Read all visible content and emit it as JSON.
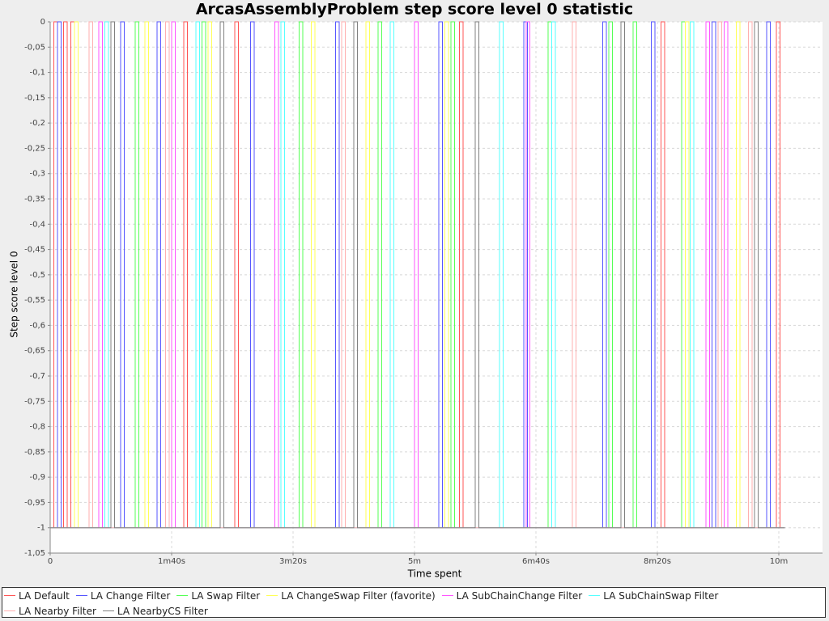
{
  "chart_data": {
    "type": "line",
    "title": "ArcasAssemblyProblem step score level 0 statistic",
    "x_label": "Time spent",
    "y_label": "Step score level 0",
    "xlim": [
      0,
      636
    ],
    "ylim": [
      -1.05,
      0
    ],
    "xticks": [
      0,
      {
        "value": 100,
        "label": "1m40s"
      },
      {
        "value": 200,
        "label": "3m20s"
      },
      {
        "value": 300,
        "label": "5m"
      },
      {
        "value": 400,
        "label": "6m40s"
      },
      {
        "value": 500,
        "label": "8m20s"
      },
      {
        "value": 600,
        "label": "10m"
      }
    ],
    "yticks": [
      0,
      {
        "value": -0.05,
        "label": "-0,05"
      },
      {
        "value": -0.1,
        "label": "-0,1"
      },
      {
        "value": -0.15,
        "label": "-0,15"
      },
      {
        "value": -0.2,
        "label": "-0,2"
      },
      {
        "value": -0.25,
        "label": "-0,25"
      },
      {
        "value": -0.3,
        "label": "-0,3"
      },
      {
        "value": -0.35,
        "label": "-0,35"
      },
      {
        "value": -0.4,
        "label": "-0,4"
      },
      {
        "value": -0.45,
        "label": "-0,45"
      },
      {
        "value": -0.5,
        "label": "-0,5"
      },
      {
        "value": -0.55,
        "label": "-0,55"
      },
      {
        "value": -0.6,
        "label": "-0,6"
      },
      {
        "value": -0.65,
        "label": "-0,65"
      },
      {
        "value": -0.7,
        "label": "-0,7"
      },
      {
        "value": -0.75,
        "label": "-0,75"
      },
      {
        "value": -0.8,
        "label": "-0,8"
      },
      {
        "value": -0.85,
        "label": "-0,85"
      },
      {
        "value": -0.9,
        "label": "-0,9"
      },
      {
        "value": -0.95,
        "label": "-0,95"
      },
      -1,
      {
        "value": -1.05,
        "label": "-1,05"
      }
    ],
    "grid": true,
    "legend": "bottom",
    "series": [
      {
        "name": "LA Default",
        "color": "#ff5555",
        "x": [
          0,
          3,
          3,
          6,
          6,
          11,
          11,
          14,
          14,
          17,
          17,
          20,
          20,
          110,
          110,
          113,
          113,
          152,
          152,
          155,
          155,
          337,
          337,
          340,
          340,
          503,
          503,
          506,
          506,
          598,
          598,
          601,
          601,
          605
        ],
        "values": [
          -1,
          -1,
          0,
          0,
          -1,
          -1,
          0,
          0,
          -1,
          -1,
          0,
          0,
          -1,
          -1,
          0,
          0,
          -1,
          -1,
          0,
          0,
          -1,
          -1,
          0,
          0,
          -1,
          -1,
          0,
          0,
          -1,
          -1,
          0,
          0,
          -1,
          -1
        ]
      },
      {
        "name": "LA Change Filter",
        "color": "#5555ff",
        "x": [
          0,
          6,
          6,
          9,
          9,
          58,
          58,
          61,
          61,
          88,
          88,
          91,
          91,
          165,
          165,
          168,
          168,
          235,
          235,
          238,
          238,
          320,
          320,
          323,
          323,
          390,
          390,
          393,
          393,
          455,
          455,
          458,
          458,
          495,
          495,
          498,
          498,
          545,
          545,
          548,
          548,
          590,
          590,
          593,
          593,
          605
        ],
        "values": [
          -1,
          -1,
          0,
          0,
          -1,
          -1,
          0,
          0,
          -1,
          -1,
          0,
          0,
          -1,
          -1,
          0,
          0,
          -1,
          -1,
          0,
          0,
          -1,
          -1,
          0,
          0,
          -1,
          -1,
          0,
          0,
          -1,
          -1,
          0,
          0,
          -1,
          -1,
          0,
          0,
          -1,
          -1,
          0,
          0,
          -1,
          -1,
          0,
          0,
          -1,
          -1
        ]
      },
      {
        "name": "LA Swap Filter",
        "color": "#55ff55",
        "x": [
          0,
          70,
          70,
          73,
          73,
          125,
          125,
          128,
          128,
          205,
          205,
          208,
          208,
          270,
          270,
          273,
          273,
          330,
          330,
          333,
          333,
          410,
          410,
          413,
          413,
          460,
          460,
          463,
          463,
          480,
          480,
          483,
          483,
          520,
          520,
          523,
          523,
          605
        ],
        "values": [
          -1,
          -1,
          0,
          0,
          -1,
          -1,
          0,
          0,
          -1,
          -1,
          0,
          0,
          -1,
          -1,
          0,
          0,
          -1,
          -1,
          0,
          0,
          -1,
          -1,
          0,
          0,
          -1,
          -1,
          0,
          0,
          -1,
          -1,
          0,
          0,
          -1,
          -1,
          0,
          0,
          -1,
          -1
        ]
      },
      {
        "name": "LA ChangeSwap Filter (favorite)",
        "color": "#ffff55",
        "x": [
          0,
          20,
          20,
          23,
          23,
          78,
          78,
          81,
          81,
          130,
          130,
          133,
          133,
          215,
          215,
          218,
          218,
          260,
          260,
          263,
          263,
          325,
          325,
          328,
          328,
          523,
          523,
          526,
          526,
          565,
          565,
          568,
          568,
          605
        ],
        "values": [
          -1,
          -1,
          0,
          0,
          -1,
          -1,
          0,
          0,
          -1,
          -1,
          0,
          0,
          -1,
          -1,
          0,
          0,
          -1,
          -1,
          0,
          0,
          -1,
          -1,
          0,
          0,
          -1,
          -1,
          0,
          0,
          -1,
          -1,
          0,
          0,
          -1,
          -1
        ]
      },
      {
        "name": "LA SubChainChange Filter",
        "color": "#ff55ff",
        "x": [
          0,
          40,
          40,
          43,
          43,
          100,
          100,
          103,
          103,
          185,
          185,
          188,
          188,
          300,
          300,
          303,
          303,
          392,
          392,
          395,
          395,
          540,
          540,
          543,
          543,
          555,
          555,
          558,
          558,
          605
        ],
        "values": [
          -1,
          -1,
          0,
          0,
          -1,
          -1,
          0,
          0,
          -1,
          -1,
          0,
          0,
          -1,
          -1,
          0,
          0,
          -1,
          -1,
          0,
          0,
          -1,
          -1,
          0,
          0,
          -1,
          -1,
          0,
          0,
          -1,
          -1
        ]
      },
      {
        "name": "LA SubChainSwap Filter",
        "color": "#55ffff",
        "x": [
          0,
          45,
          45,
          48,
          48,
          120,
          120,
          123,
          123,
          190,
          190,
          193,
          193,
          280,
          280,
          283,
          283,
          370,
          370,
          373,
          373,
          413,
          413,
          416,
          416,
          527,
          527,
          530,
          530,
          605
        ],
        "values": [
          -1,
          -1,
          0,
          0,
          -1,
          -1,
          0,
          0,
          -1,
          -1,
          0,
          0,
          -1,
          -1,
          0,
          0,
          -1,
          -1,
          0,
          0,
          -1,
          -1,
          0,
          0,
          -1,
          -1,
          0,
          0,
          -1,
          -1
        ]
      },
      {
        "name": "LA Nearby Filter",
        "color": "#ffafaf",
        "x": [
          0,
          32,
          32,
          35,
          35,
          95,
          95,
          98,
          98,
          240,
          240,
          243,
          243,
          430,
          430,
          433,
          433,
          550,
          550,
          553,
          553,
          575,
          575,
          578,
          578,
          605
        ],
        "values": [
          -1,
          -1,
          0,
          0,
          -1,
          -1,
          0,
          0,
          -1,
          -1,
          0,
          0,
          -1,
          -1,
          0,
          0,
          -1,
          -1,
          0,
          0,
          -1,
          -1,
          0,
          0,
          -1,
          -1
        ]
      },
      {
        "name": "LA NearbyCS Filter",
        "color": "#808080",
        "x": [
          0,
          50,
          50,
          53,
          53,
          140,
          140,
          143,
          143,
          250,
          250,
          253,
          253,
          350,
          350,
          353,
          353,
          470,
          470,
          473,
          473,
          580,
          580,
          583,
          583,
          605
        ],
        "values": [
          -1,
          -1,
          0,
          0,
          -1,
          -1,
          0,
          0,
          -1,
          -1,
          0,
          0,
          -1,
          -1,
          0,
          0,
          -1,
          -1,
          0,
          0,
          -1,
          -1,
          0,
          0,
          -1,
          -1
        ]
      }
    ]
  }
}
